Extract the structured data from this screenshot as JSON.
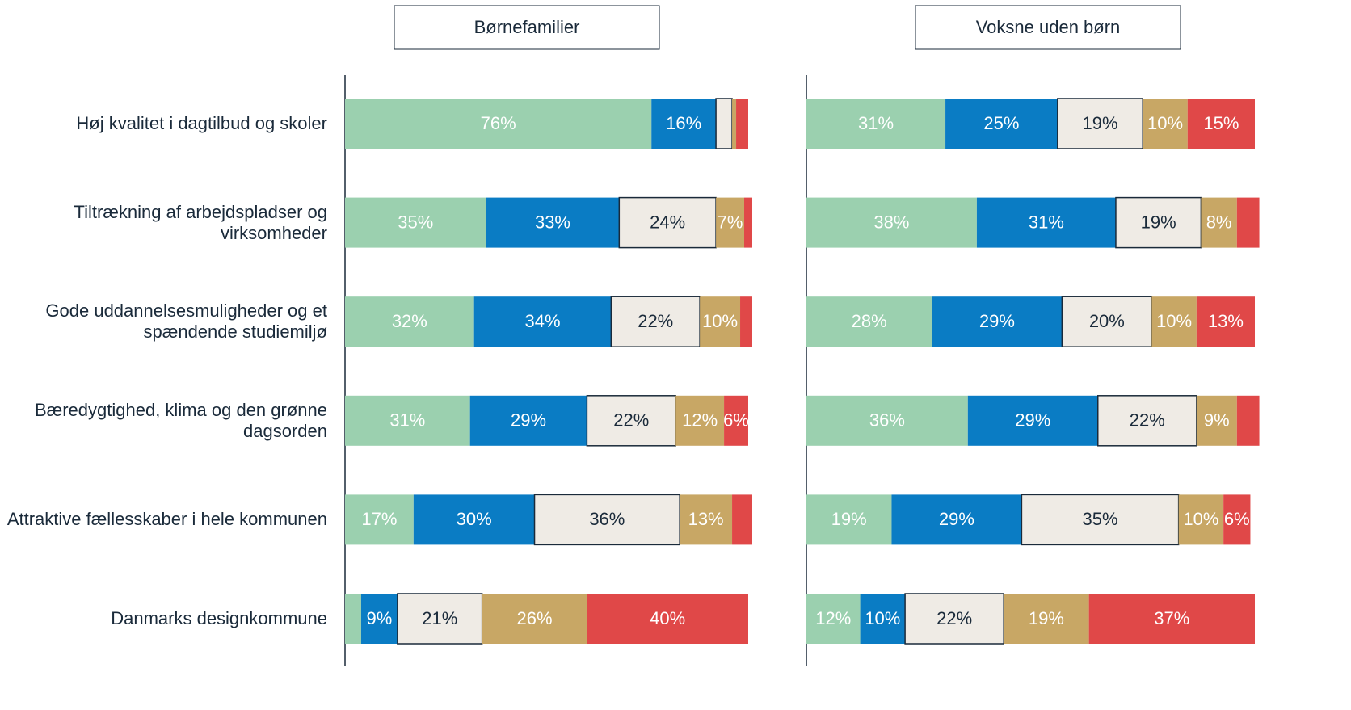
{
  "chart_data": [
    {
      "type": "bar",
      "orientation": "horizontal",
      "stacked": true,
      "title": "Børnefamilier",
      "categories": [
        "Høj kvalitet i dagtilbud og skoler",
        "Tiltrækning af arbejdspladser og virksomheder",
        "Gode uddannelsesmuligheder og et spændende studiemiljø",
        "Bæredygtighed, klima og den grønne dagsorden",
        "Attraktive fællesskaber i hele kommunen",
        "Danmarks designkommune"
      ],
      "xlim": [
        0,
        100
      ],
      "series": [
        {
          "color": "#9bd0af",
          "values": [
            76,
            35,
            32,
            31,
            17,
            4
          ],
          "value_labels": [
            "76%",
            "35%",
            "32%",
            "31%",
            "17%",
            null
          ]
        },
        {
          "color": "#0a7cc4",
          "values": [
            16,
            33,
            34,
            29,
            30,
            9
          ],
          "value_labels": [
            "16%",
            "33%",
            "34%",
            "29%",
            "30%",
            "9%"
          ]
        },
        {
          "color": "#efebe5",
          "values": [
            4,
            24,
            22,
            22,
            36,
            21
          ],
          "value_labels": [
            null,
            "24%",
            "22%",
            "22%",
            "36%",
            "21%"
          ]
        },
        {
          "color": "#c8a765",
          "values": [
            1,
            7,
            10,
            12,
            13,
            26
          ],
          "value_labels": [
            null,
            "7%",
            "10%",
            "12%",
            "13%",
            "26%"
          ]
        },
        {
          "color": "#e04848",
          "values": [
            3,
            2,
            3,
            6,
            5,
            40
          ],
          "value_labels": [
            null,
            null,
            null,
            "6%",
            null,
            "40%"
          ]
        }
      ]
    },
    {
      "type": "bar",
      "orientation": "horizontal",
      "stacked": true,
      "title": "Voksne uden børn",
      "xlim": [
        0,
        100
      ],
      "series": [
        {
          "color": "#9bd0af",
          "values": [
            31,
            38,
            28,
            36,
            19,
            12
          ],
          "value_labels": [
            "31%",
            "38%",
            "28%",
            "36%",
            "19%",
            "12%"
          ]
        },
        {
          "color": "#0a7cc4",
          "values": [
            25,
            31,
            29,
            29,
            29,
            10
          ],
          "value_labels": [
            "25%",
            "31%",
            "29%",
            "29%",
            "29%",
            "10%"
          ]
        },
        {
          "color": "#efebe5",
          "values": [
            19,
            19,
            20,
            22,
            35,
            22
          ],
          "value_labels": [
            "19%",
            "19%",
            "20%",
            "22%",
            "35%",
            "22%"
          ]
        },
        {
          "color": "#c8a765",
          "values": [
            10,
            8,
            10,
            9,
            10,
            19
          ],
          "value_labels": [
            "10%",
            "8%",
            "10%",
            "9%",
            "10%",
            "19%"
          ]
        },
        {
          "color": "#e04848",
          "values": [
            15,
            5,
            13,
            5,
            6,
            37
          ],
          "value_labels": [
            "15%",
            null,
            "13%",
            null,
            "6%",
            "37%"
          ]
        }
      ]
    }
  ]
}
